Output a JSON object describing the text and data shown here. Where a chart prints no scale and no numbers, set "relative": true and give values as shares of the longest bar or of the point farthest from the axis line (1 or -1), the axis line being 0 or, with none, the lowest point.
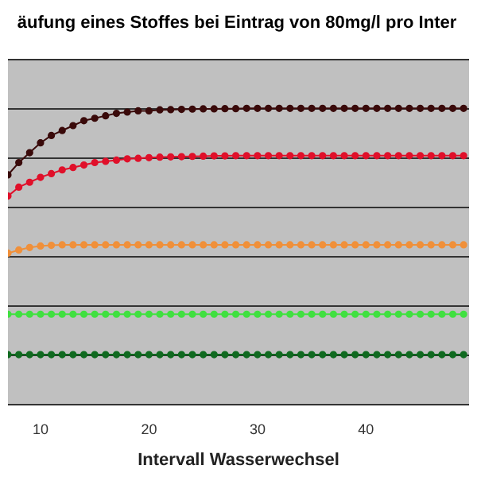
{
  "chart_data": {
    "type": "line",
    "title": "äufung eines Stoffes bei Eintrag von 80mg/l pro Inter",
    "xlabel": "Intervall Wasserwechsel",
    "relative": true,
    "x": [
      7,
      8,
      9,
      10,
      11,
      12,
      13,
      14,
      15,
      16,
      17,
      18,
      19,
      20,
      21,
      22,
      23,
      24,
      25,
      26,
      27,
      28,
      29,
      30,
      31,
      32,
      33,
      34,
      35,
      36,
      37,
      38,
      39,
      40,
      41,
      42,
      43,
      44,
      45,
      46,
      47,
      48,
      49
    ],
    "xlim": [
      7,
      49.5
    ],
    "xticks": [
      10,
      20,
      30,
      40
    ],
    "series": [
      {
        "color": "#3a0a0a",
        "values": [
          0.73,
          0.78,
          0.82,
          0.86,
          0.89,
          0.91,
          0.93,
          0.95,
          0.96,
          0.97,
          0.98,
          0.985,
          0.99,
          0.99,
          0.994,
          0.995,
          0.996,
          0.997,
          0.998,
          0.998,
          0.999,
          0.999,
          1,
          1,
          1,
          1,
          1,
          1,
          1,
          1,
          1,
          1,
          1,
          1,
          1,
          1,
          1,
          1,
          1,
          1,
          1,
          1,
          1
        ]
      },
      {
        "color": "#e0102a",
        "values": [
          0.644,
          0.68,
          0.7,
          0.72,
          0.735,
          0.75,
          0.76,
          0.77,
          0.78,
          0.785,
          0.79,
          0.795,
          0.797,
          0.8,
          0.802,
          0.803,
          0.804,
          0.805,
          0.806,
          0.807,
          0.807,
          0.808,
          0.808,
          0.808,
          0.808,
          0.808,
          0.808,
          0.808,
          0.808,
          0.808,
          0.808,
          0.808,
          0.808,
          0.808,
          0.808,
          0.808,
          0.808,
          0.808,
          0.808,
          0.808,
          0.808,
          0.808,
          0.808
        ]
      },
      {
        "color": "#f0903a",
        "values": [
          0.412,
          0.425,
          0.435,
          0.441,
          0.444,
          0.446,
          0.446,
          0.446,
          0.446,
          0.446,
          0.446,
          0.446,
          0.446,
          0.446,
          0.446,
          0.446,
          0.446,
          0.446,
          0.446,
          0.446,
          0.446,
          0.446,
          0.446,
          0.446,
          0.446,
          0.446,
          0.446,
          0.446,
          0.446,
          0.446,
          0.446,
          0.446,
          0.446,
          0.446,
          0.446,
          0.446,
          0.446,
          0.446,
          0.446,
          0.446,
          0.446,
          0.446,
          0.446
        ]
      },
      {
        "color": "#40e040",
        "values": [
          0.164,
          0.164,
          0.164,
          0.164,
          0.164,
          0.164,
          0.164,
          0.164,
          0.164,
          0.164,
          0.164,
          0.164,
          0.164,
          0.164,
          0.164,
          0.164,
          0.164,
          0.164,
          0.164,
          0.164,
          0.164,
          0.164,
          0.164,
          0.164,
          0.164,
          0.164,
          0.164,
          0.164,
          0.164,
          0.164,
          0.164,
          0.164,
          0.164,
          0.164,
          0.164,
          0.164,
          0.164,
          0.164,
          0.164,
          0.164,
          0.164,
          0.164,
          0.164
        ]
      },
      {
        "color": "#106a20",
        "values": [
          0,
          0,
          0,
          0,
          0,
          0,
          0,
          0,
          0,
          0,
          0,
          0,
          0,
          0,
          0,
          0,
          0,
          0,
          0,
          0,
          0,
          0,
          0,
          0,
          0,
          0,
          0,
          0,
          0,
          0,
          0,
          0,
          0,
          0,
          0,
          0,
          0,
          0,
          0,
          0,
          0,
          0,
          0
        ]
      }
    ],
    "grid": "y",
    "marker": "circle",
    "line_style": "solid"
  }
}
